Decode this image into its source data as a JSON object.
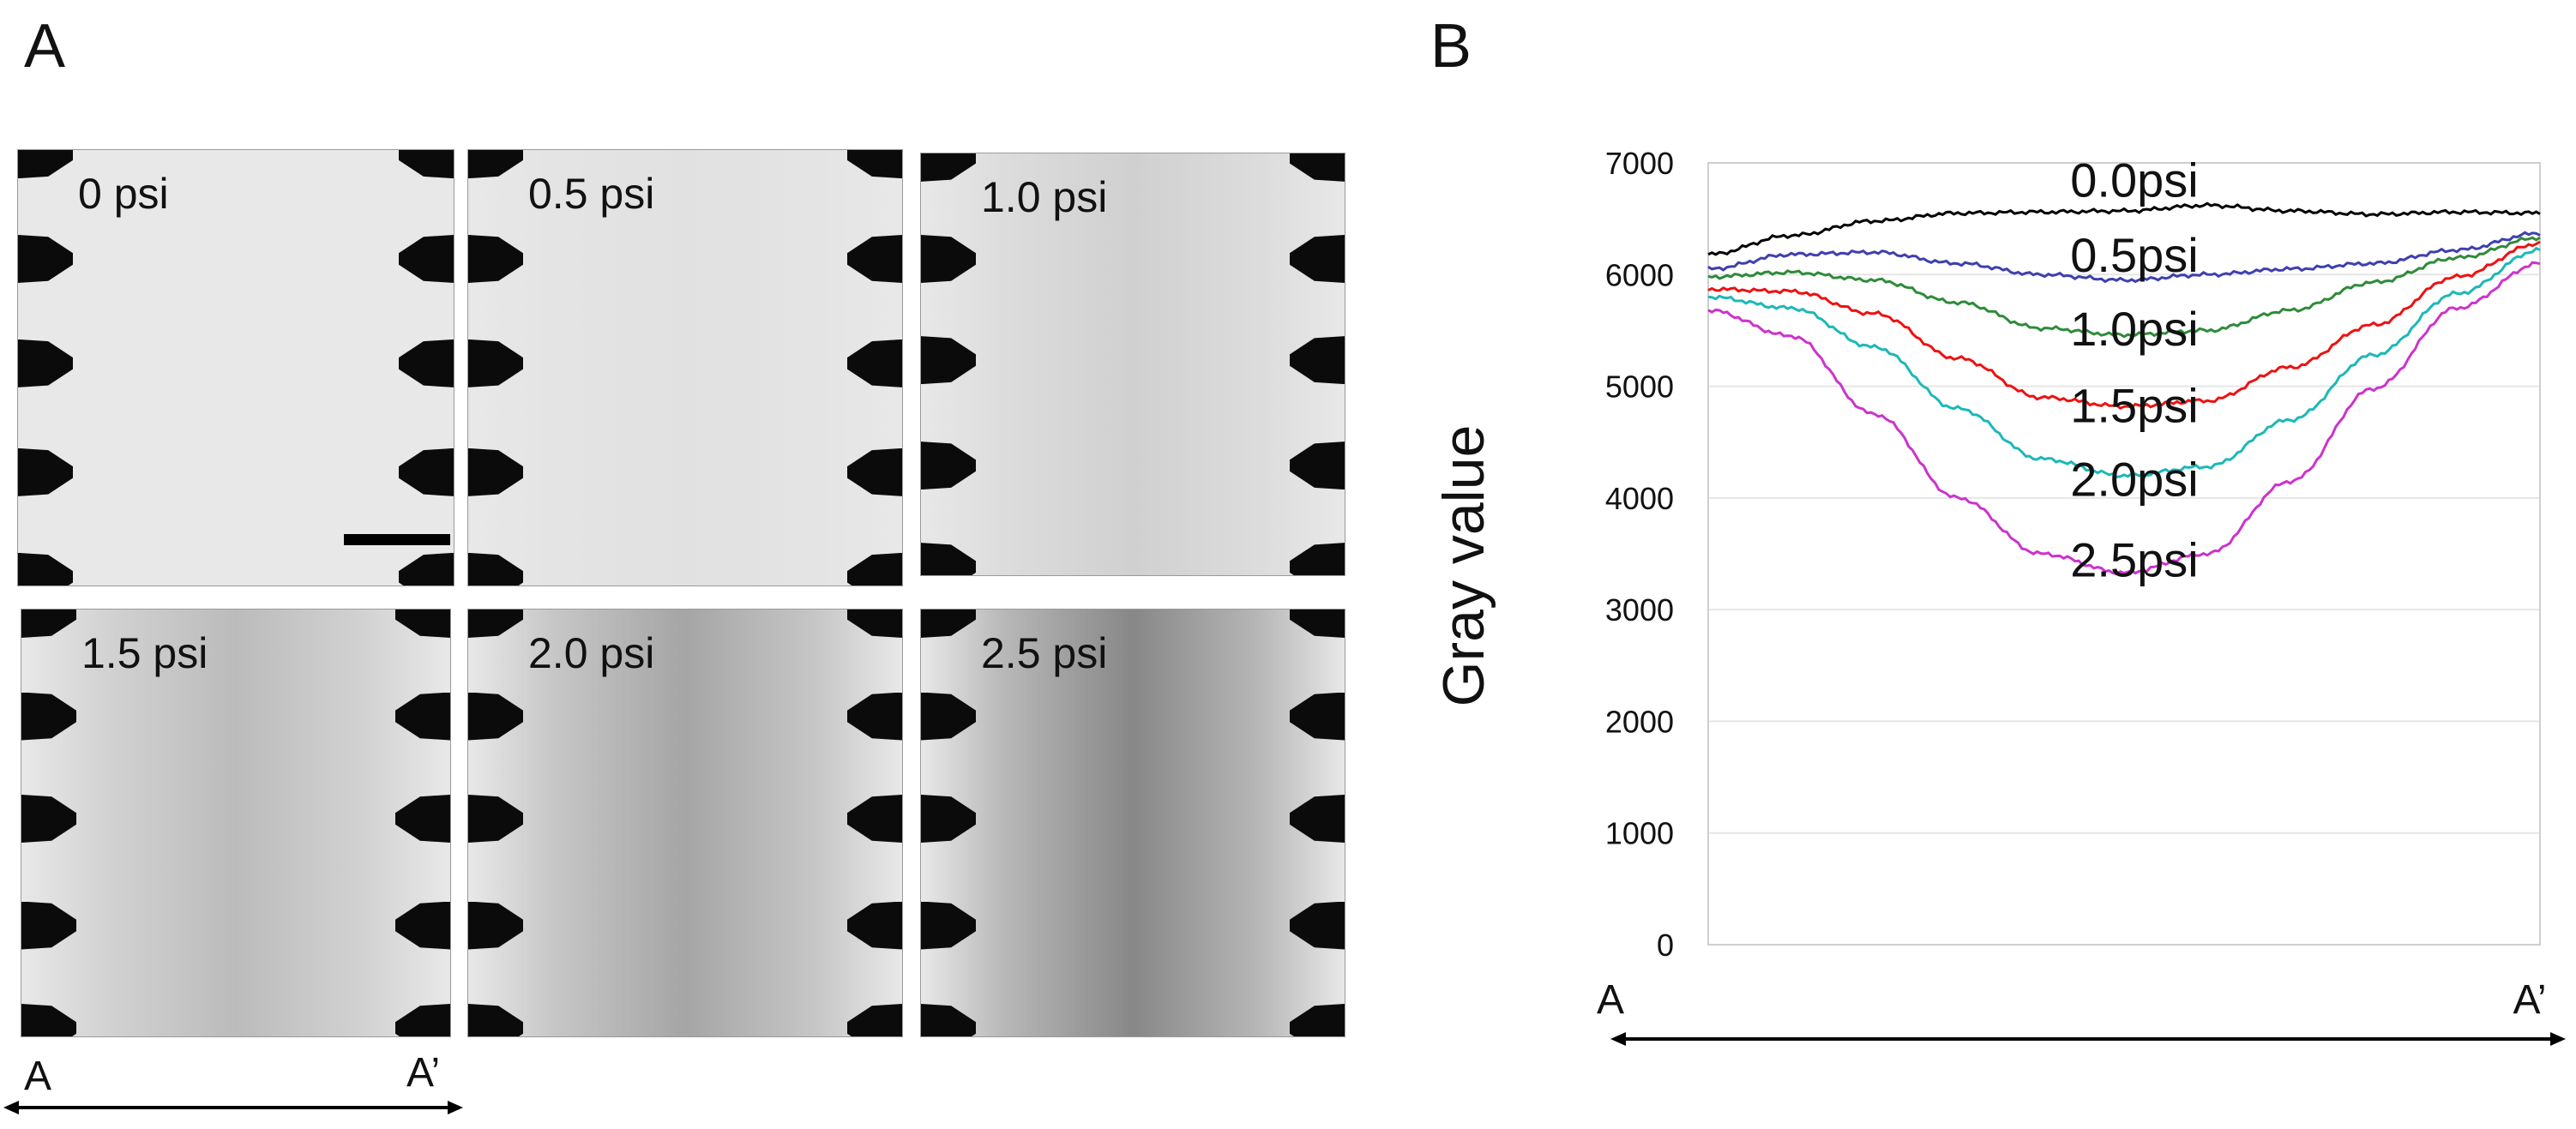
{
  "panel_a": {
    "letter": "A",
    "tiles": [
      {
        "label": "0 psi",
        "darkness": 0.0
      },
      {
        "label": "0.5 psi",
        "darkness": 0.05
      },
      {
        "label": "1.0 psi",
        "darkness": 0.16
      },
      {
        "label": "1.5 psi",
        "darkness": 0.3
      },
      {
        "label": "2.0 psi",
        "darkness": 0.45
      },
      {
        "label": "2.5 psi",
        "darkness": 0.65
      }
    ],
    "axis": {
      "start": "A",
      "end": "A’"
    }
  },
  "panel_b": {
    "letter": "B",
    "axis": {
      "start": "A",
      "end": "A’"
    }
  },
  "chart_data": {
    "type": "line",
    "title": "",
    "xlabel": "",
    "ylabel": "Gray value",
    "ylim": [
      0,
      7000
    ],
    "yticks": [
      0,
      1000,
      2000,
      3000,
      4000,
      5000,
      6000,
      7000
    ],
    "xlim": [
      0,
      1
    ],
    "grid": true,
    "x": [
      0,
      0.1,
      0.2,
      0.3,
      0.4,
      0.5,
      0.6,
      0.7,
      0.8,
      0.9,
      1.0
    ],
    "series": [
      {
        "name": "0.0psi",
        "color": "#000000",
        "values": [
          6180,
          6350,
          6480,
          6550,
          6560,
          6570,
          6620,
          6570,
          6540,
          6560,
          6550
        ]
      },
      {
        "name": "0.5psi",
        "color": "#3f3fb0",
        "values": [
          6050,
          6180,
          6200,
          6100,
          6000,
          5950,
          6000,
          6050,
          6100,
          6220,
          6370
        ]
      },
      {
        "name": "1.0psi",
        "color": "#2e8b3a",
        "values": [
          5980,
          6020,
          5950,
          5750,
          5520,
          5460,
          5500,
          5680,
          5930,
          6150,
          6330
        ]
      },
      {
        "name": "1.5psi",
        "color": "#ee1111",
        "values": [
          5870,
          5850,
          5650,
          5250,
          4900,
          4820,
          4870,
          5170,
          5550,
          5980,
          6280
        ]
      },
      {
        "name": "2.0psi",
        "color": "#1cb8b8",
        "values": [
          5800,
          5700,
          5350,
          4800,
          4350,
          4200,
          4280,
          4700,
          5280,
          5830,
          6220
        ]
      },
      {
        "name": "2.5psi",
        "color": "#cc33cc",
        "values": [
          5680,
          5450,
          4750,
          4000,
          3500,
          3330,
          3500,
          4150,
          4980,
          5700,
          6100
        ]
      }
    ],
    "series_label_y": [
      6850,
      6180,
      5520,
      4830,
      4170,
      3450
    ]
  }
}
